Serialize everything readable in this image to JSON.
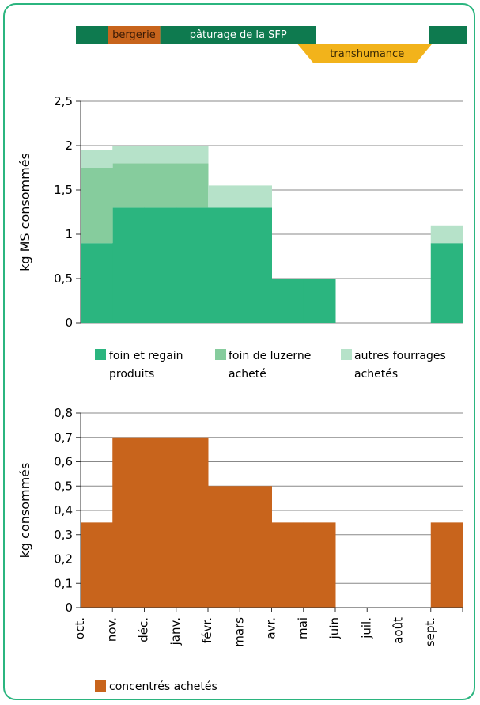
{
  "timeline": {
    "segments": [
      {
        "label": "",
        "color": "#0e7a4f",
        "start": 0,
        "end": 0.85
      },
      {
        "label": "bergerie",
        "color": "#c8641c",
        "start": 0.85,
        "end": 2.5
      },
      {
        "label": "pâturage de la SFP",
        "color": "#0e7a4f",
        "start": 2.5,
        "end": 7.4
      },
      {
        "label": "",
        "color": "#0e7a4f",
        "start": 10.95,
        "end": 12
      }
    ],
    "transhumance": {
      "label": "transhumance",
      "color": "#f2b31b",
      "start": 7,
      "end": 11
    }
  },
  "months": [
    "oct.",
    "nov.",
    "déc.",
    "janv.",
    "févr.",
    "mars",
    "avr.",
    "mai",
    "juin",
    "juil.",
    "août",
    "sept."
  ],
  "chart_data": [
    {
      "type": "area",
      "ylabel": "kg MS consommés",
      "ylim": [
        0,
        2.5
      ],
      "yticks": [
        "0",
        "0,5",
        "1",
        "1,5",
        "2",
        "2,5"
      ],
      "x_unit": "month",
      "grid": true,
      "series": [
        {
          "name": "foin et regain produits",
          "color": "#2bb57f",
          "values": [
            0.9,
            1.3,
            1.3,
            1.3,
            1.3,
            1.3,
            0.5,
            0.5,
            0,
            0,
            0,
            0.9
          ]
        },
        {
          "name": "foin de luzerne acheté",
          "color": "#86cc9d",
          "values": [
            0.85,
            0.5,
            0.5,
            0.5,
            0,
            0,
            0,
            0,
            0,
            0,
            0,
            0
          ]
        },
        {
          "name": "autres fourrages achetés",
          "color": "#b6e2c9",
          "values": [
            0.2,
            0.2,
            0.2,
            0.2,
            0.25,
            0.25,
            0,
            0,
            0,
            0,
            0,
            0.2
          ]
        }
      ],
      "legend": [
        {
          "lines": [
            "foin et regain",
            "produits"
          ]
        },
        {
          "lines": [
            "foin de luzerne",
            "acheté"
          ]
        },
        {
          "lines": [
            "autres fourrages",
            "achetés"
          ]
        }
      ]
    },
    {
      "type": "area",
      "ylabel": "kg consommés",
      "ylim": [
        0,
        0.8
      ],
      "yticks": [
        "0",
        "0,1",
        "0,2",
        "0,3",
        "0,4",
        "0,5",
        "0,6",
        "0,7",
        "0,8"
      ],
      "grid": true,
      "series": [
        {
          "name": "concentrés achetés",
          "color": "#c8641c",
          "values": [
            0.35,
            0.7,
            0.7,
            0.7,
            0.5,
            0.5,
            0.35,
            0.35,
            0,
            0,
            0,
            0.35
          ]
        }
      ],
      "legend": [
        {
          "lines": [
            "concentrés achetés"
          ]
        }
      ]
    }
  ]
}
